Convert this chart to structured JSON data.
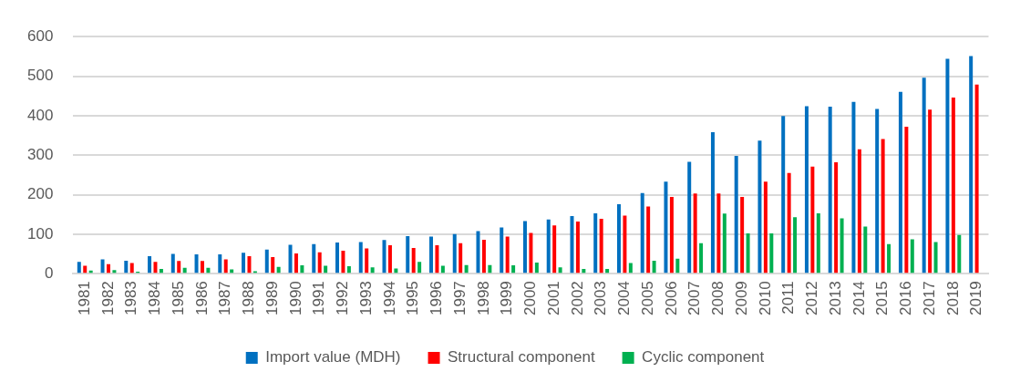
{
  "chart_data": {
    "type": "bar",
    "categories": [
      "1981",
      "1982",
      "1983",
      "1984",
      "1985",
      "1986",
      "1987",
      "1988",
      "1989",
      "1990",
      "1991",
      "1992",
      "1993",
      "1994",
      "1995",
      "1996",
      "1997",
      "1998",
      "1999",
      "2000",
      "2001",
      "2002",
      "2003",
      "2004",
      "2005",
      "2006",
      "2007",
      "2008",
      "2009",
      "2010",
      "2011",
      "2012",
      "2013",
      "2014",
      "2015",
      "2016",
      "2017",
      "2018",
      "2019"
    ],
    "series": [
      {
        "name": "Import value (MDH)",
        "color": "#0070c0",
        "values": [
          30,
          36,
          33,
          44,
          50,
          49,
          49,
          53,
          61,
          73,
          75,
          79,
          80,
          85,
          95,
          94,
          100,
          108,
          117,
          133,
          137,
          146,
          153,
          176,
          204,
          233,
          283,
          358,
          298,
          337,
          399,
          424,
          423,
          435,
          417,
          460,
          496,
          544,
          551
        ]
      },
      {
        "name": "Structural component",
        "color": "#ff0000",
        "values": [
          20,
          24,
          27,
          30,
          32,
          32,
          36,
          44,
          42,
          51,
          54,
          58,
          64,
          72,
          65,
          72,
          77,
          86,
          94,
          103,
          122,
          132,
          139,
          147,
          170,
          194,
          203,
          203,
          194,
          233,
          255,
          271,
          282,
          315,
          341,
          372,
          415,
          446,
          479
        ]
      },
      {
        "name": "Cyclic component",
        "color": "#00b050",
        "values": [
          8,
          9,
          5,
          12,
          15,
          15,
          11,
          6,
          17,
          21,
          20,
          19,
          16,
          13,
          30,
          20,
          22,
          22,
          21,
          28,
          16,
          12,
          12,
          27,
          33,
          38,
          77,
          152,
          102,
          102,
          143,
          153,
          140,
          119,
          75,
          87,
          80,
          98,
          null
        ]
      }
    ],
    "ylim": [
      0,
      600
    ],
    "yticks": [
      0,
      100,
      200,
      300,
      400,
      500,
      600
    ],
    "grid": "y",
    "legend": "bottom"
  }
}
